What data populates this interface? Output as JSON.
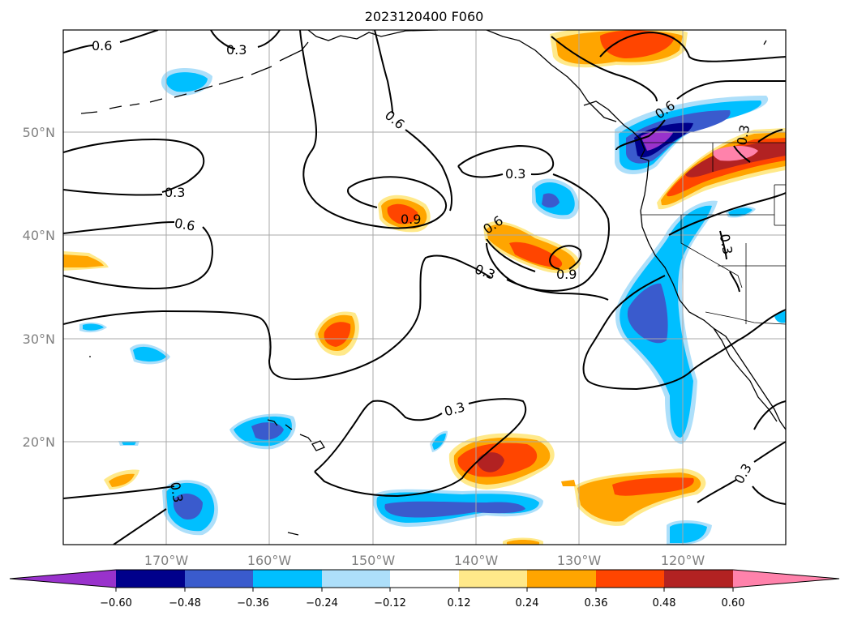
{
  "title": "2023120400 F060",
  "map": {
    "longitude_labels": [
      "170°W",
      "160°W",
      "150°W",
      "140°W",
      "130°W",
      "120°W"
    ],
    "latitude_labels": [
      "50°N",
      "40°N",
      "30°N",
      "20°N"
    ],
    "grid": true,
    "contour_labels": [
      {
        "text": "0.6"
      },
      {
        "text": "0.3"
      },
      {
        "text": "0.6"
      },
      {
        "text": "0.3"
      },
      {
        "text": "0.6"
      },
      {
        "text": "0.9"
      },
      {
        "text": "0.3"
      },
      {
        "text": "0.6"
      },
      {
        "text": "0.9"
      },
      {
        "text": "0.3"
      },
      {
        "text": "0.6"
      },
      {
        "text": "0.3"
      },
      {
        "text": "0.3"
      },
      {
        "text": "0.3"
      },
      {
        "text": "0.3"
      },
      {
        "text": "0.3"
      }
    ]
  },
  "colorbar": {
    "tick_labels": [
      "−0.60",
      "−0.48",
      "−0.36",
      "−0.24",
      "−0.12",
      "0.12",
      "0.24",
      "0.36",
      "0.48",
      "0.60"
    ],
    "colors": [
      "#9932CC",
      "#00008B",
      "#3A5BCD",
      "#00BFFF",
      "#ADDFFA",
      "#FFFFFF",
      "#FFE98A",
      "#FFA500",
      "#FF4500",
      "#B22222",
      "#FF82AB"
    ]
  }
}
